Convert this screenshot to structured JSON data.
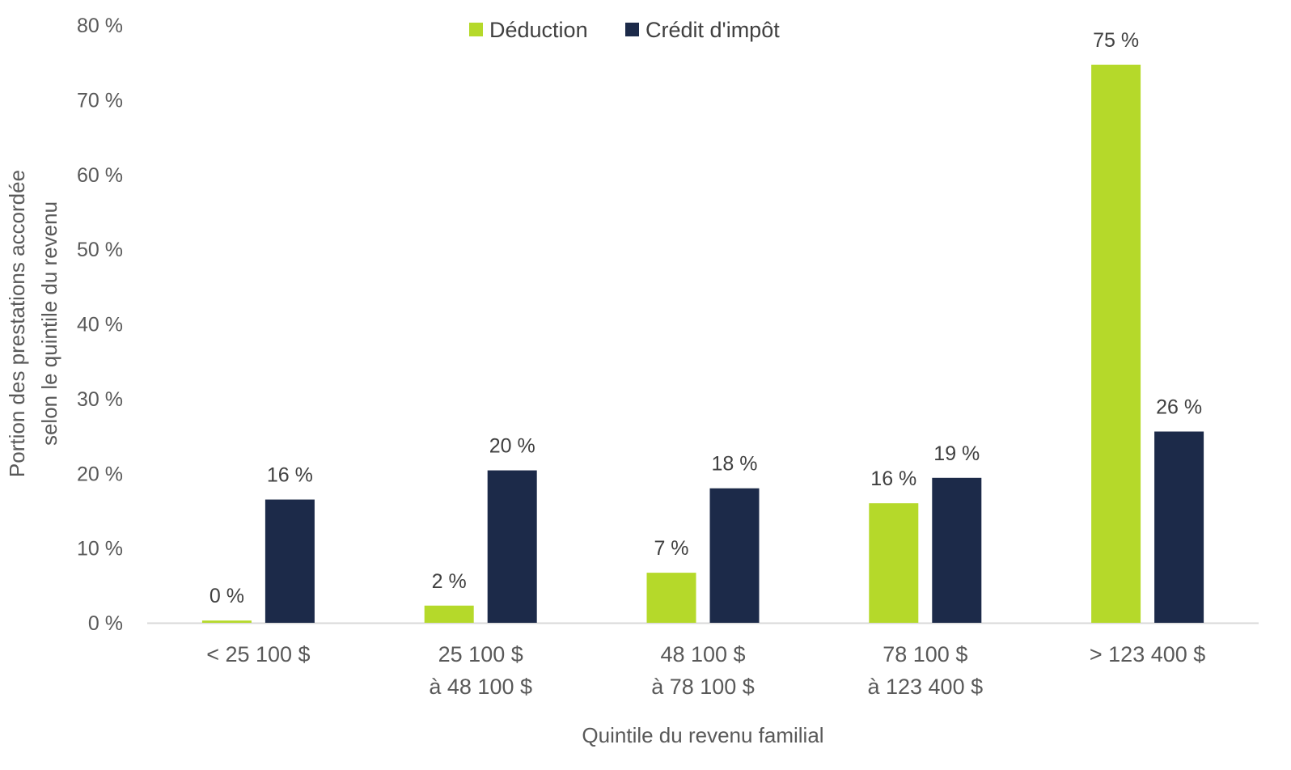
{
  "chart_data": {
    "type": "bar",
    "title": "",
    "xlabel": "Quintile du revenu familial",
    "ylabel_lines": [
      "Portion des prestations accordée",
      "selon le quintile du revenu"
    ],
    "ylim": [
      0,
      80
    ],
    "yticks": [
      0,
      10,
      20,
      30,
      40,
      50,
      60,
      70,
      80
    ],
    "ytick_labels": [
      "0 %",
      "10 %",
      "20 %",
      "30 %",
      "40 %",
      "50 %",
      "60 %",
      "70 %",
      "80 %"
    ],
    "categories": [
      [
        "< 25 100 $"
      ],
      [
        "25 100 $",
        "à 48 100 $"
      ],
      [
        "48 100 $",
        "à 78 100 $"
      ],
      [
        "78 100 $",
        "à 123 400 $"
      ],
      [
        "> 123 400 $"
      ]
    ],
    "series": [
      {
        "name": "Déduction",
        "color": "#B5D92A",
        "values": [
          0.3,
          2.3,
          6.7,
          16.0,
          74.7
        ],
        "labels": [
          "0 %",
          "2 %",
          "7 %",
          "16 %",
          "75 %"
        ]
      },
      {
        "name": "Crédit d'impôt",
        "color": "#1C2A49",
        "values": [
          16.5,
          20.4,
          18.0,
          19.4,
          25.6
        ],
        "labels": [
          "16 %",
          "20 %",
          "18 %",
          "19 %",
          "26 %"
        ]
      }
    ],
    "legend_position": "top-center",
    "grid": false,
    "axis_line_color": "#D9D9D9"
  }
}
